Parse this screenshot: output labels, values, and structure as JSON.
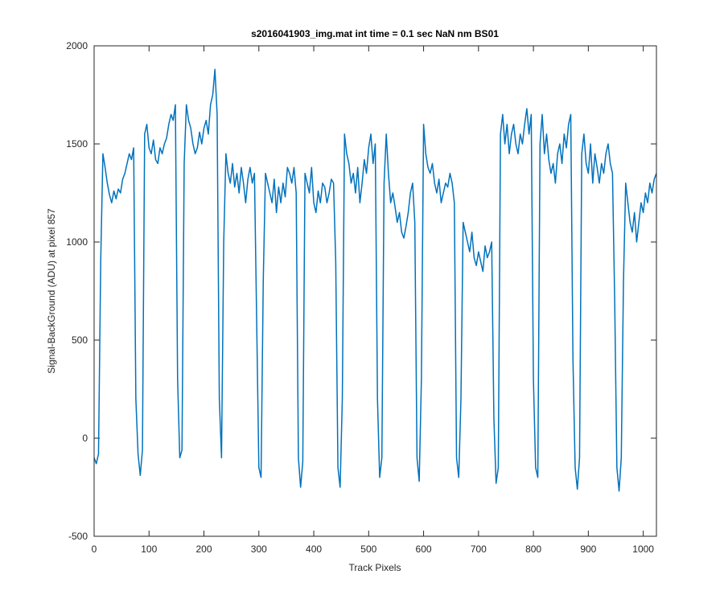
{
  "chart_data": {
    "type": "line",
    "title": "s2016041903_img.mat int time = 0.1 sec  NaN nm BS01",
    "xlabel": "Track Pixels",
    "ylabel": "Signal-BackGround (ADU) at pixel 857",
    "xlim": [
      0,
      1024
    ],
    "ylim": [
      -500,
      2000
    ],
    "xticks": [
      0,
      100,
      200,
      300,
      400,
      500,
      600,
      700,
      800,
      900,
      1000
    ],
    "yticks": [
      -500,
      0,
      500,
      1000,
      1500,
      2000
    ],
    "grid": false,
    "x": [
      0,
      4,
      8,
      12,
      16,
      20,
      24,
      28,
      32,
      36,
      40,
      44,
      48,
      52,
      56,
      60,
      64,
      68,
      72,
      76,
      80,
      84,
      88,
      92,
      96,
      100,
      104,
      108,
      112,
      116,
      120,
      124,
      128,
      132,
      136,
      140,
      144,
      148,
      152,
      156,
      160,
      164,
      168,
      172,
      176,
      180,
      184,
      188,
      192,
      196,
      200,
      204,
      208,
      212,
      216,
      220,
      224,
      228,
      232,
      236,
      240,
      244,
      248,
      252,
      256,
      260,
      264,
      268,
      272,
      276,
      280,
      284,
      288,
      292,
      296,
      300,
      304,
      308,
      312,
      316,
      320,
      324,
      328,
      332,
      336,
      340,
      344,
      348,
      352,
      356,
      360,
      364,
      368,
      372,
      376,
      380,
      384,
      388,
      392,
      396,
      400,
      404,
      408,
      412,
      416,
      420,
      424,
      428,
      432,
      436,
      440,
      444,
      448,
      452,
      456,
      460,
      464,
      468,
      472,
      476,
      480,
      484,
      488,
      492,
      496,
      500,
      504,
      508,
      512,
      516,
      520,
      524,
      528,
      532,
      536,
      540,
      544,
      548,
      552,
      556,
      560,
      564,
      568,
      572,
      576,
      580,
      584,
      588,
      592,
      596,
      600,
      604,
      608,
      612,
      616,
      620,
      624,
      628,
      632,
      636,
      640,
      644,
      648,
      652,
      656,
      660,
      664,
      668,
      672,
      676,
      680,
      684,
      688,
      692,
      696,
      700,
      704,
      708,
      712,
      716,
      720,
      724,
      728,
      732,
      736,
      740,
      744,
      748,
      752,
      756,
      760,
      764,
      768,
      772,
      776,
      780,
      784,
      788,
      792,
      796,
      800,
      804,
      808,
      812,
      816,
      820,
      824,
      828,
      832,
      836,
      840,
      844,
      848,
      852,
      856,
      860,
      864,
      868,
      872,
      876,
      880,
      884,
      888,
      892,
      896,
      900,
      904,
      908,
      912,
      916,
      920,
      924,
      928,
      932,
      936,
      940,
      944,
      948,
      952,
      956,
      960,
      964,
      968,
      972,
      976,
      980,
      984,
      988,
      992,
      996,
      1000,
      1004,
      1008,
      1012,
      1016,
      1020,
      1024
    ],
    "series": [
      {
        "color": "#0072BD",
        "values": [
          -100,
          -130,
          -80,
          900,
          1450,
          1380,
          1300,
          1240,
          1200,
          1260,
          1220,
          1270,
          1250,
          1320,
          1350,
          1400,
          1450,
          1420,
          1480,
          200,
          -80,
          -190,
          -60,
          1550,
          1600,
          1480,
          1450,
          1520,
          1420,
          1400,
          1480,
          1450,
          1500,
          1530,
          1600,
          1650,
          1620,
          1700,
          300,
          -100,
          -60,
          1400,
          1700,
          1620,
          1580,
          1500,
          1450,
          1480,
          1560,
          1500,
          1580,
          1620,
          1550,
          1700,
          1750,
          1880,
          1650,
          200,
          -100,
          1000,
          1450,
          1350,
          1300,
          1400,
          1280,
          1350,
          1250,
          1380,
          1300,
          1200,
          1320,
          1380,
          1300,
          1350,
          600,
          -150,
          -200,
          800,
          1350,
          1300,
          1250,
          1200,
          1320,
          1150,
          1280,
          1200,
          1300,
          1230,
          1380,
          1350,
          1300,
          1380,
          1250,
          -100,
          -250,
          -120,
          1350,
          1300,
          1250,
          1380,
          1200,
          1150,
          1260,
          1200,
          1300,
          1280,
          1200,
          1250,
          1320,
          1300,
          900,
          -150,
          -250,
          200,
          1550,
          1450,
          1400,
          1300,
          1350,
          1250,
          1380,
          1200,
          1300,
          1420,
          1350,
          1480,
          1550,
          1400,
          1500,
          200,
          -200,
          -100,
          1300,
          1550,
          1350,
          1200,
          1250,
          1180,
          1100,
          1150,
          1050,
          1020,
          1080,
          1150,
          1250,
          1300,
          1100,
          -100,
          -220,
          300,
          1600,
          1450,
          1380,
          1350,
          1400,
          1300,
          1250,
          1320,
          1200,
          1250,
          1300,
          1280,
          1350,
          1300,
          1200,
          -100,
          -200,
          200,
          1100,
          1050,
          1000,
          950,
          1050,
          920,
          880,
          950,
          900,
          850,
          980,
          920,
          950,
          1000,
          100,
          -230,
          -150,
          1550,
          1650,
          1500,
          1600,
          1450,
          1550,
          1600,
          1500,
          1450,
          1550,
          1500,
          1600,
          1680,
          1550,
          1650,
          300,
          -150,
          -200,
          1500,
          1650,
          1450,
          1550,
          1420,
          1350,
          1400,
          1300,
          1450,
          1500,
          1400,
          1550,
          1480,
          1600,
          1650,
          400,
          -150,
          -260,
          -100,
          1450,
          1550,
          1400,
          1350,
          1500,
          1300,
          1450,
          1380,
          1300,
          1400,
          1350,
          1450,
          1500,
          1400,
          1350,
          700,
          -150,
          -270,
          -100,
          800,
          1300,
          1200,
          1100,
          1050,
          1150,
          1000,
          1100,
          1200,
          1150,
          1250,
          1200,
          1300,
          1250,
          1320,
          1350
        ]
      }
    ]
  }
}
